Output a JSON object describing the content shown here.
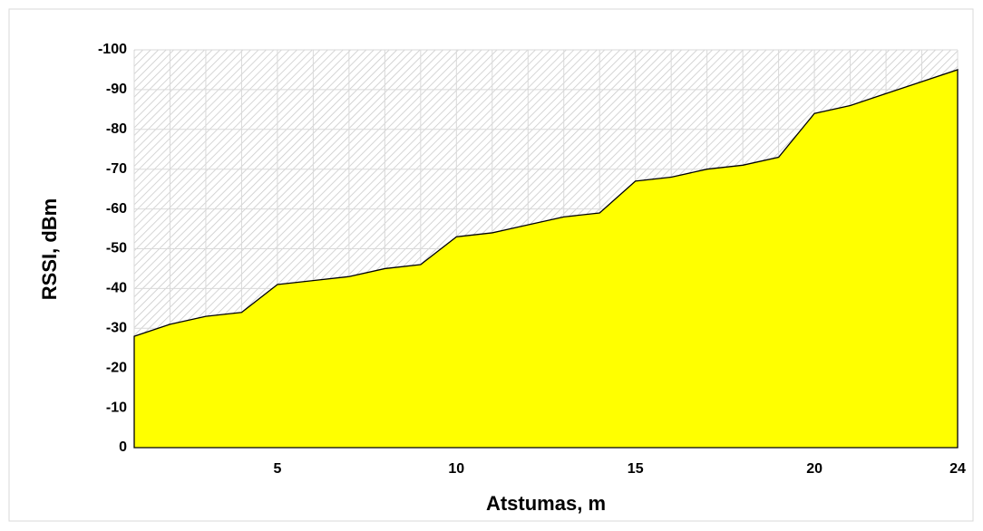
{
  "chart_data": {
    "type": "area",
    "xlabel": "Atstumas, m",
    "ylabel": "RSSI, dBm",
    "x": [
      1,
      2,
      3,
      4,
      5,
      6,
      7,
      8,
      9,
      10,
      11,
      12,
      13,
      14,
      15,
      16,
      17,
      18,
      19,
      20,
      21,
      22,
      23,
      24
    ],
    "series": [
      {
        "color": "#ffff00",
        "values": [
          -28,
          -31,
          -33,
          -34,
          -41,
          -42,
          -43,
          -45,
          -46,
          -53,
          -54,
          -56,
          -58,
          -59,
          -67,
          -68,
          -70,
          -71,
          -73,
          -84,
          -86,
          -89,
          -92,
          -95
        ]
      }
    ],
    "xlim": [
      1,
      24
    ],
    "xticks": [
      5,
      10,
      15,
      20,
      24
    ],
    "ylim": [
      0,
      -100
    ],
    "yticks": [
      0,
      -10,
      -20,
      -30,
      -40,
      -50,
      -60,
      -70,
      -80,
      -90,
      -100
    ],
    "grid": true
  }
}
